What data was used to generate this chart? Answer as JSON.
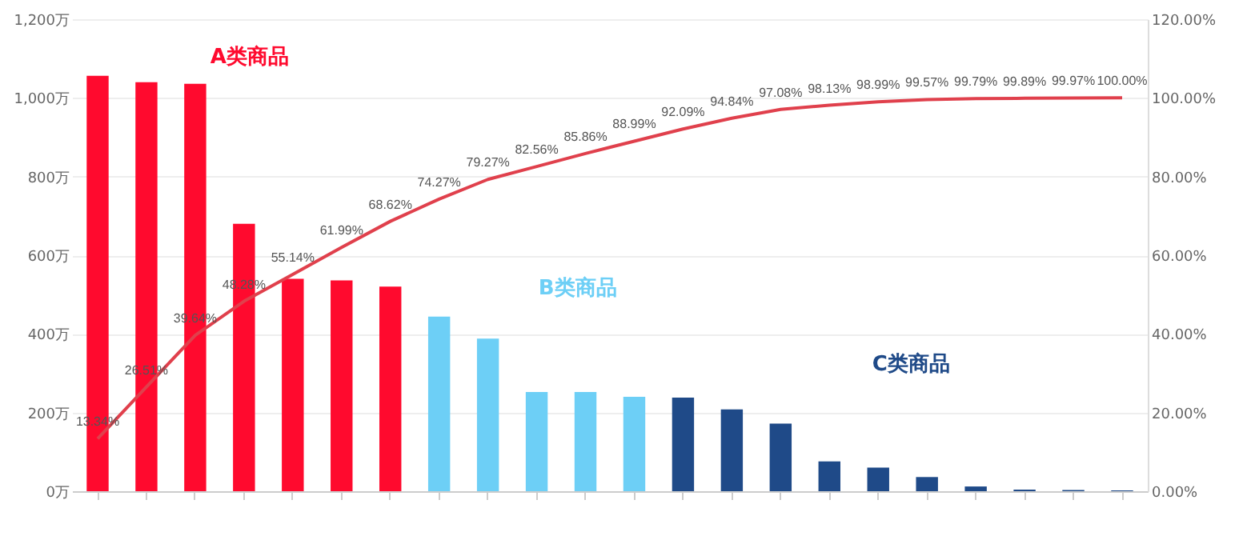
{
  "chart_data": {
    "type": "bar",
    "categories": [
      null,
      null,
      null,
      null,
      null,
      null,
      null,
      null,
      null,
      null,
      null,
      null,
      null,
      null,
      null,
      null,
      null,
      null,
      null,
      null,
      null,
      null
    ],
    "series": [
      {
        "color": "#ff0a2e",
        "values": [
          1056,
          1040,
          1036,
          680,
          540,
          536,
          520,
          null,
          null,
          null,
          null,
          null,
          null,
          null,
          null,
          null,
          null,
          null,
          null,
          null,
          null,
          null
        ]
      },
      {
        "type": "bar",
        "color": "#6dcff6",
        "values": [
          null,
          null,
          null,
          null,
          null,
          null,
          null,
          444,
          388,
          252,
          252,
          240,
          null,
          null,
          null,
          null,
          null,
          null,
          null,
          null,
          null,
          null
        ]
      },
      {
        "type": "bar",
        "color": "#1f4a88",
        "values": [
          null,
          null,
          null,
          null,
          null,
          null,
          null,
          null,
          null,
          null,
          null,
          null,
          238,
          208,
          172,
          76,
          60,
          36,
          12,
          4,
          3,
          2
        ]
      },
      {
        "type": "line",
        "axis": "y2",
        "color": "#e0404c",
        "values": [
          13.34,
          26.51,
          39.64,
          48.28,
          55.14,
          61.99,
          68.62,
          74.27,
          79.27,
          82.56,
          85.86,
          88.99,
          92.09,
          94.84,
          97.08,
          98.13,
          98.99,
          99.57,
          99.79,
          99.89,
          99.97,
          100.0
        ],
        "value_labels": [
          "13.34%",
          "26.51%",
          "39.64%",
          "48.28%",
          "55.14%",
          "61.99%",
          "68.62%",
          "74.27%",
          "79.27%",
          "82.56%",
          "85.86%",
          "88.99%",
          "92.09%",
          "94.84%",
          "97.08%",
          "98.13%",
          "98.99%",
          "99.57%",
          "99.79%",
          "99.89%",
          "99.97%",
          "100.00%"
        ]
      }
    ],
    "annotations": [
      "A类商品",
      "B类商品",
      "C类商品"
    ],
    "ylim": [
      0,
      1200
    ],
    "yticks": [
      {
        "value": 0,
        "label": "0万"
      },
      {
        "value": 200,
        "label": "200万"
      },
      {
        "value": 400,
        "label": "400万"
      },
      {
        "value": 600,
        "label": "600万"
      },
      {
        "value": 800,
        "label": "800万"
      },
      {
        "value": 1000,
        "label": "1,000万"
      },
      {
        "value": 1200,
        "label": "1,200万"
      }
    ],
    "y2lim": [
      0,
      120
    ],
    "y2ticks": [
      {
        "value": 0,
        "label": "0.00%"
      },
      {
        "value": 20,
        "label": "20.00%"
      },
      {
        "value": 40,
        "label": "40.00%"
      },
      {
        "value": 60,
        "label": "60.00%"
      },
      {
        "value": 80,
        "label": "80.00%"
      },
      {
        "value": 100,
        "label": "100.00%"
      },
      {
        "value": 120,
        "label": "120.00%"
      }
    ],
    "grid": "y",
    "legend": false,
    "tick_labels": "y"
  }
}
